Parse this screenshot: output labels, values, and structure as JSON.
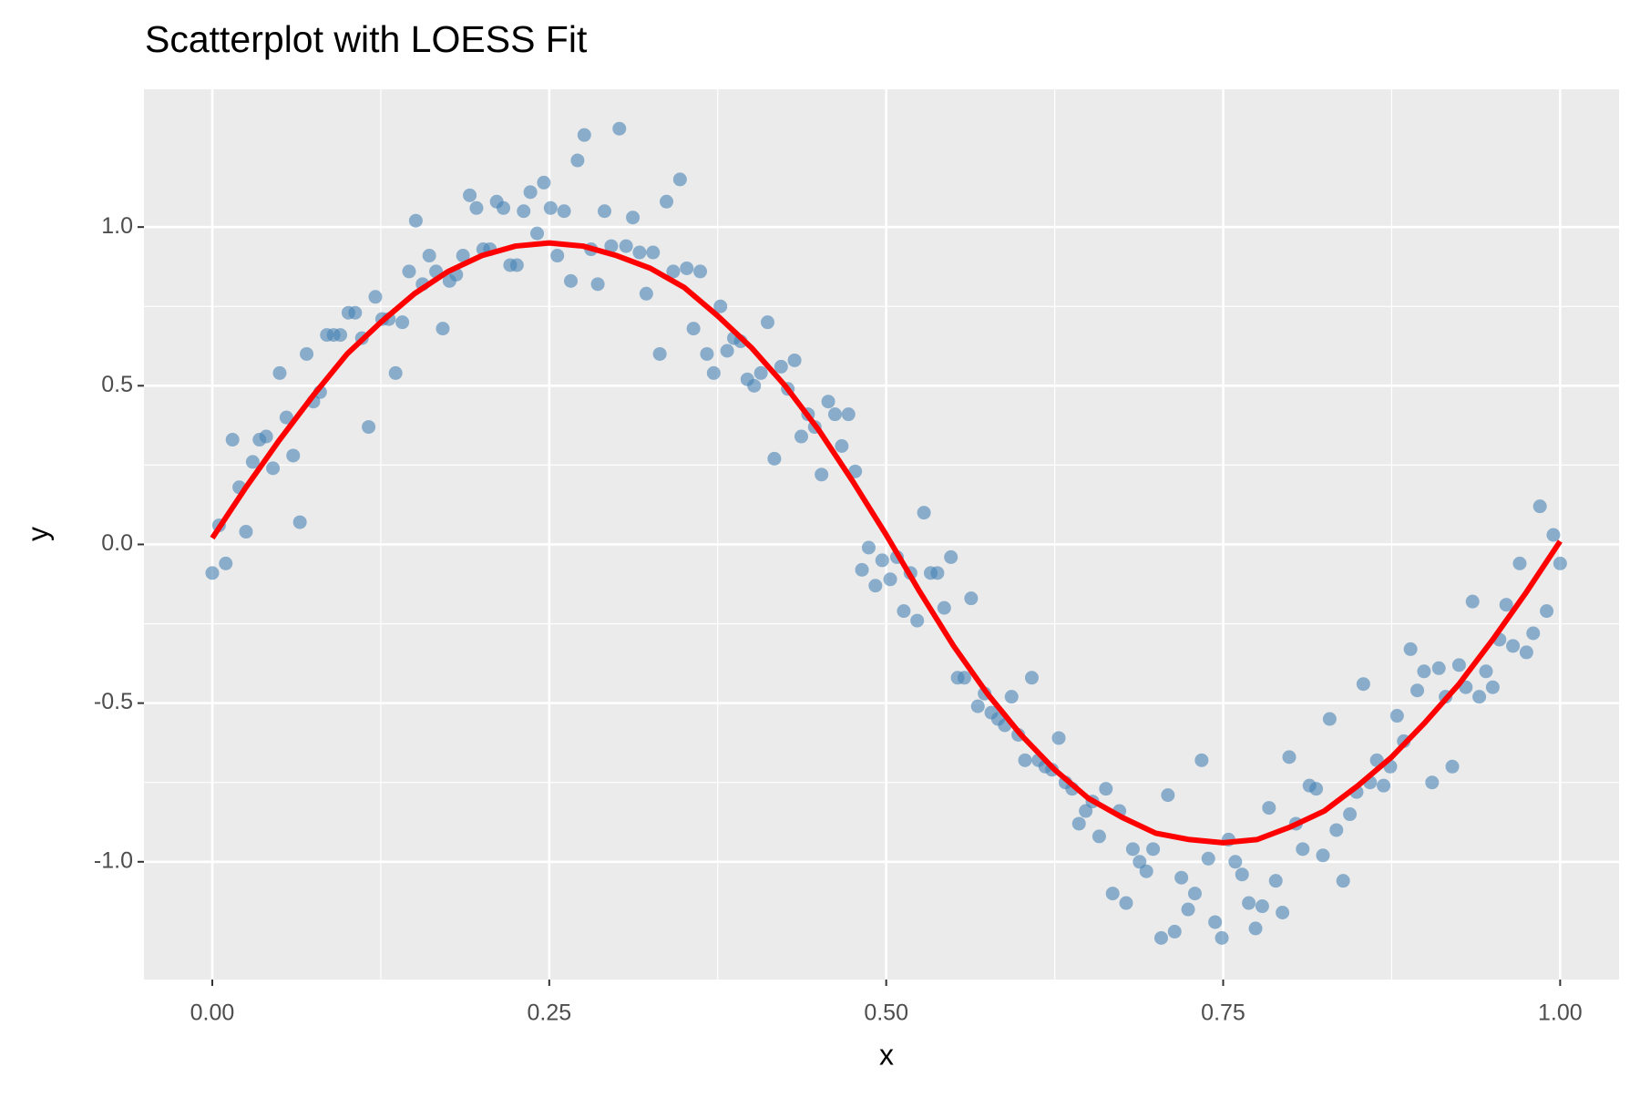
{
  "chart_data": {
    "type": "scatter",
    "title": "Scatterplot with LOESS Fit",
    "x_label": "x",
    "y_label": "y",
    "x": [
      0,
      0.005,
      0.01,
      0.015,
      0.02,
      0.025,
      0.03,
      0.035,
      0.04,
      0.045,
      0.05,
      0.055,
      0.06,
      0.065,
      0.07,
      0.075,
      0.08,
      0.085,
      0.09,
      0.095,
      0.101,
      0.106,
      0.111,
      0.116,
      0.121,
      0.126,
      0.131,
      0.136,
      0.141,
      0.146,
      0.151,
      0.156,
      0.161,
      0.166,
      0.171,
      0.176,
      0.181,
      0.186,
      0.191,
      0.196,
      0.201,
      0.206,
      0.211,
      0.216,
      0.221,
      0.226,
      0.231,
      0.236,
      0.241,
      0.246,
      0.251,
      0.256,
      0.261,
      0.266,
      0.271,
      0.276,
      0.281,
      0.286,
      0.291,
      0.296,
      0.302,
      0.307,
      0.312,
      0.317,
      0.322,
      0.327,
      0.332,
      0.337,
      0.342,
      0.347,
      0.352,
      0.357,
      0.362,
      0.367,
      0.372,
      0.377,
      0.382,
      0.387,
      0.392,
      0.397,
      0.402,
      0.407,
      0.412,
      0.417,
      0.422,
      0.427,
      0.432,
      0.437,
      0.442,
      0.447,
      0.452,
      0.457,
      0.462,
      0.467,
      0.472,
      0.477,
      0.482,
      0.487,
      0.492,
      0.497,
      0.503,
      0.508,
      0.513,
      0.518,
      0.523,
      0.528,
      0.533,
      0.538,
      0.543,
      0.548,
      0.553,
      0.558,
      0.563,
      0.568,
      0.573,
      0.578,
      0.583,
      0.588,
      0.593,
      0.598,
      0.603,
      0.608,
      0.613,
      0.618,
      0.623,
      0.628,
      0.633,
      0.638,
      0.643,
      0.648,
      0.653,
      0.658,
      0.663,
      0.668,
      0.673,
      0.678,
      0.683,
      0.688,
      0.693,
      0.698,
      0.704,
      0.709,
      0.714,
      0.719,
      0.724,
      0.729,
      0.734,
      0.739,
      0.744,
      0.749,
      0.754,
      0.759,
      0.764,
      0.769,
      0.774,
      0.779,
      0.784,
      0.789,
      0.794,
      0.799,
      0.804,
      0.809,
      0.814,
      0.819,
      0.824,
      0.829,
      0.834,
      0.839,
      0.844,
      0.849,
      0.854,
      0.859,
      0.864,
      0.869,
      0.874,
      0.879,
      0.884,
      0.889,
      0.894,
      0.899,
      0.905,
      0.91,
      0.915,
      0.92,
      0.925,
      0.93,
      0.935,
      0.94,
      0.945,
      0.95,
      0.955,
      0.96,
      0.965,
      0.97,
      0.975,
      0.98,
      0.985,
      0.99,
      0.995,
      1
    ],
    "values": [
      -0.09,
      0.06,
      -0.06,
      0.33,
      0.18,
      0.04,
      0.26,
      0.33,
      0.34,
      0.24,
      0.54,
      0.4,
      0.28,
      0.07,
      0.6,
      0.45,
      0.48,
      0.66,
      0.66,
      0.66,
      0.73,
      0.73,
      0.65,
      0.37,
      0.78,
      0.71,
      0.71,
      0.54,
      0.7,
      0.86,
      1.02,
      0.82,
      0.91,
      0.86,
      0.68,
      0.83,
      0.85,
      0.91,
      1.1,
      1.06,
      0.93,
      0.93,
      1.08,
      1.06,
      0.88,
      0.88,
      1.05,
      1.11,
      0.98,
      1.14,
      1.06,
      0.91,
      1.05,
      0.83,
      1.21,
      1.29,
      0.93,
      0.82,
      1.05,
      0.94,
      1.31,
      0.94,
      1.03,
      0.92,
      0.79,
      0.92,
      0.6,
      1.08,
      0.86,
      1.15,
      0.87,
      0.68,
      0.86,
      0.6,
      0.54,
      0.75,
      0.61,
      0.65,
      0.64,
      0.52,
      0.5,
      0.54,
      0.7,
      0.27,
      0.56,
      0.49,
      0.58,
      0.34,
      0.41,
      0.37,
      0.22,
      0.45,
      0.41,
      0.31,
      0.41,
      0.23,
      -0.08,
      -0.01,
      -0.13,
      -0.05,
      -0.11,
      -0.04,
      -0.21,
      -0.09,
      -0.24,
      0.1,
      -0.09,
      -0.09,
      -0.2,
      -0.04,
      -0.42,
      -0.42,
      -0.17,
      -0.51,
      -0.47,
      -0.53,
      -0.55,
      -0.57,
      -0.48,
      -0.6,
      -0.68,
      -0.42,
      -0.68,
      -0.7,
      -0.71,
      -0.61,
      -0.75,
      -0.77,
      -0.88,
      -0.84,
      -0.81,
      -0.92,
      -0.77,
      -1.1,
      -0.84,
      -1.13,
      -0.96,
      -1.0,
      -1.03,
      -0.96,
      -1.24,
      -0.79,
      -1.22,
      -1.05,
      -1.15,
      -1.1,
      -0.68,
      -0.99,
      -1.19,
      -1.24,
      -0.93,
      -1.0,
      -1.04,
      -1.13,
      -1.21,
      -1.14,
      -0.83,
      -1.06,
      -1.16,
      -0.67,
      -0.88,
      -0.96,
      -0.76,
      -0.77,
      -0.98,
      -0.55,
      -0.9,
      -1.06,
      -0.85,
      -0.78,
      -0.44,
      -0.75,
      -0.68,
      -0.76,
      -0.7,
      -0.54,
      -0.62,
      -0.33,
      -0.46,
      -0.4,
      -0.75,
      -0.39,
      -0.48,
      -0.7,
      -0.38,
      -0.45,
      -0.18,
      -0.48,
      -0.4,
      -0.45,
      -0.3,
      -0.19,
      -0.32,
      -0.06,
      -0.34,
      -0.28,
      0.12,
      -0.21,
      0.03,
      -0.06
    ],
    "point_color": "#4682b4",
    "fit": {
      "color": "#ff0000",
      "x": [
        0,
        0.025,
        0.05,
        0.075,
        0.1,
        0.125,
        0.15,
        0.175,
        0.2,
        0.225,
        0.25,
        0.275,
        0.3,
        0.325,
        0.35,
        0.375,
        0.4,
        0.425,
        0.45,
        0.475,
        0.5,
        0.525,
        0.55,
        0.575,
        0.6,
        0.625,
        0.65,
        0.675,
        0.7,
        0.725,
        0.75,
        0.775,
        0.8,
        0.825,
        0.85,
        0.875,
        0.9,
        0.925,
        0.95,
        0.975,
        1
      ],
      "values": [
        0.02,
        0.18,
        0.33,
        0.47,
        0.6,
        0.7,
        0.79,
        0.86,
        0.91,
        0.94,
        0.95,
        0.94,
        0.91,
        0.87,
        0.81,
        0.72,
        0.62,
        0.5,
        0.36,
        0.2,
        0.03,
        -0.15,
        -0.32,
        -0.47,
        -0.6,
        -0.71,
        -0.8,
        -0.86,
        -0.91,
        -0.93,
        -0.94,
        -0.93,
        -0.89,
        -0.84,
        -0.76,
        -0.67,
        -0.56,
        -0.44,
        -0.3,
        -0.15,
        0.01
      ]
    },
    "xlim": [
      -0.0507,
      1.0437
    ],
    "ylim": [
      -1.371,
      1.434
    ],
    "xticks": [
      {
        "value": 0,
        "label": "0.00"
      },
      {
        "value": 0.25,
        "label": "0.25"
      },
      {
        "value": 0.5,
        "label": "0.50"
      },
      {
        "value": 0.75,
        "label": "0.75"
      },
      {
        "value": 1,
        "label": "1.00"
      }
    ],
    "yticks": [
      {
        "value": -1,
        "label": "-1.0"
      },
      {
        "value": -0.5,
        "label": "-0.5"
      },
      {
        "value": 0,
        "label": "0.0"
      },
      {
        "value": 0.5,
        "label": "0.5"
      },
      {
        "value": 1,
        "label": "1.0"
      }
    ],
    "grid": true,
    "minor_grid": true
  }
}
